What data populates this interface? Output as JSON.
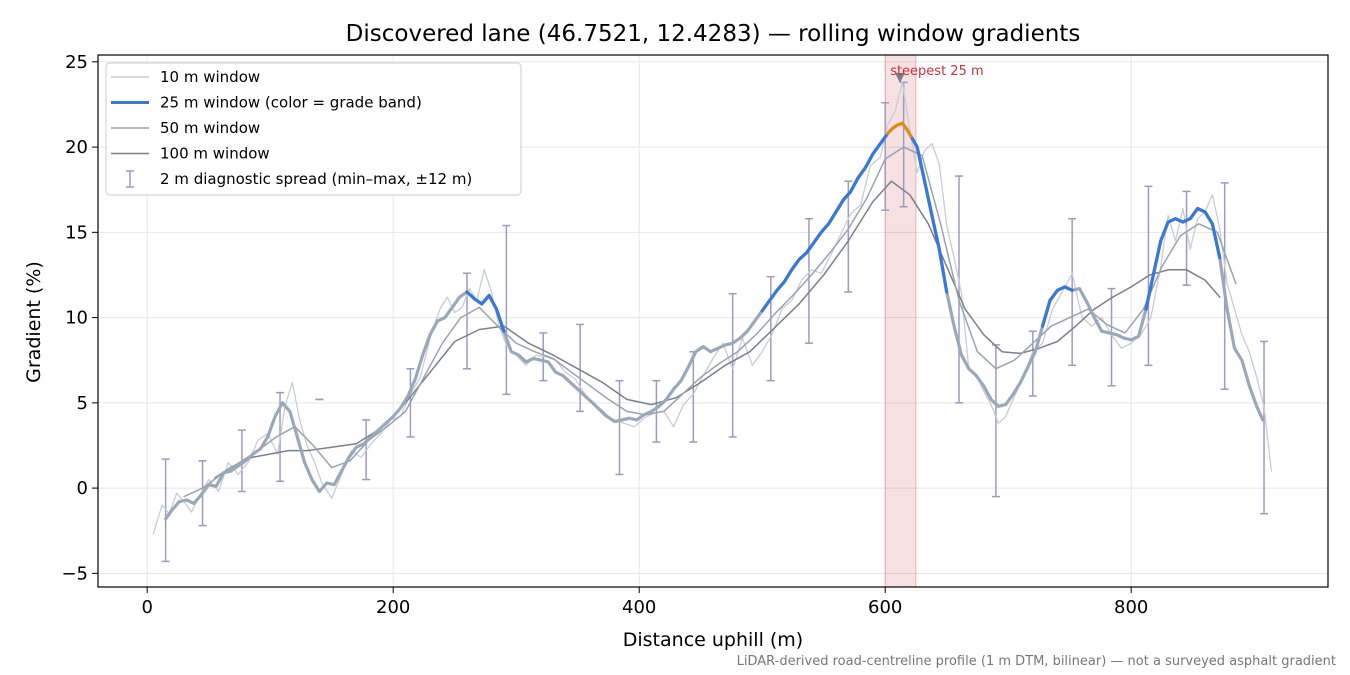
{
  "chart_data": {
    "type": "line",
    "title": "Discovered lane (46.7521, 12.4283) — rolling window gradients",
    "xlabel": "Distance uphill (m)",
    "ylabel": "Gradient (%)",
    "xlim": [
      -40,
      960
    ],
    "ylim": [
      -5.8,
      25.4
    ],
    "xticks": [
      0,
      200,
      400,
      600,
      800
    ],
    "yticks": [
      -5,
      0,
      5,
      10,
      15,
      20,
      25
    ],
    "grid": true,
    "legend_position": "upper-left",
    "footnote": "LiDAR-derived road-centreline profile (1 m DTM, bilinear) — not a surveyed asphalt gradient",
    "highlight": {
      "x_start": 600,
      "x_end": 625,
      "label": "steepest 25 m",
      "marker_x": 612,
      "marker_y": 24.0,
      "color": "#c8323c"
    },
    "legend": [
      {
        "label": "10 m window",
        "kind": "line",
        "color": "#c8ccd6",
        "width": 1.5
      },
      {
        "label": "25 m window (color = grade band)",
        "kind": "line",
        "color": "#3a78d4",
        "width": 3
      },
      {
        "label": "50 m window",
        "kind": "line",
        "color": "#9aa3b0",
        "width": 1.5
      },
      {
        "label": "100 m window",
        "kind": "line",
        "color": "#7a808c",
        "width": 1.5
      },
      {
        "label": "2 m diagnostic spread (min–max, ±12 m)",
        "kind": "errorbar",
        "color": "#9d9bbf"
      }
    ],
    "grade_band_colors": {
      "base": "#9aa8b8",
      "band_10_20": "#3a78d4",
      "band_20_plus": "#e08a1a"
    },
    "series": [
      {
        "name": "10 m window",
        "color": "#c8ccd6",
        "width": 1.3,
        "x": [
          5,
          12,
          18,
          24,
          30,
          36,
          42,
          50,
          58,
          66,
          74,
          82,
          90,
          98,
          106,
          112,
          118,
          124,
          130,
          136,
          142,
          150,
          158,
          166,
          174,
          182,
          190,
          198,
          206,
          214,
          222,
          230,
          238,
          244,
          250,
          256,
          262,
          268,
          274,
          280,
          286,
          292,
          300,
          308,
          316,
          324,
          332,
          340,
          348,
          356,
          364,
          372,
          380,
          388,
          396,
          404,
          412,
          420,
          428,
          436,
          444,
          452,
          460,
          468,
          476,
          484,
          492,
          500,
          508,
          516,
          524,
          532,
          540,
          548,
          556,
          564,
          572,
          580,
          588,
          596,
          602,
          608,
          614,
          620,
          626,
          632,
          638,
          644,
          650,
          656,
          662,
          668,
          674,
          680,
          686,
          692,
          698,
          704,
          712,
          720,
          728,
          736,
          744,
          752,
          760,
          768,
          776,
          784,
          792,
          800,
          808,
          816,
          824,
          830,
          836,
          842,
          848,
          854,
          860,
          866,
          872,
          878,
          884,
          890,
          896,
          902,
          908,
          914
        ],
        "y": [
          -2.7,
          -1.0,
          -1.5,
          -0.3,
          -0.8,
          -1.4,
          -0.5,
          0.5,
          -0.2,
          1.5,
          0.8,
          1.5,
          2.8,
          3.2,
          2.0,
          4.8,
          6.2,
          4.0,
          2.5,
          1.5,
          0.3,
          -0.6,
          0.8,
          2.2,
          1.8,
          2.6,
          3.2,
          4.0,
          4.2,
          5.5,
          6.5,
          8.8,
          10.5,
          11.2,
          10.3,
          10.6,
          11.7,
          11.0,
          12.8,
          11.5,
          9.5,
          8.4,
          7.8,
          7.2,
          7.8,
          7.7,
          7.5,
          6.8,
          6.4,
          5.5,
          4.8,
          4.2,
          4.0,
          3.8,
          3.6,
          4.1,
          4.4,
          4.5,
          3.6,
          4.9,
          5.5,
          6.6,
          7.6,
          8.5,
          7.0,
          8.8,
          7.2,
          8.0,
          9.0,
          10.5,
          11.0,
          12.2,
          12.8,
          12.6,
          13.7,
          14.9,
          16.1,
          16.6,
          18.9,
          19.4,
          21.3,
          22.1,
          23.8,
          21.0,
          18.5,
          19.8,
          20.2,
          19.0,
          15.4,
          13.5,
          11.4,
          7.0,
          6.6,
          5.7,
          4.9,
          3.8,
          4.2,
          5.2,
          6.5,
          8.0,
          8.5,
          10.5,
          11.5,
          12.6,
          10.0,
          9.5,
          10.0,
          9.0,
          8.2,
          8.5,
          9.0,
          10.0,
          13.0,
          16.0,
          14.5,
          16.4,
          14.0,
          15.8,
          16.2,
          17.2,
          15.2,
          12.0,
          10.5,
          9.0,
          8.0,
          6.5,
          4.8,
          1.0
        ]
      },
      {
        "name": "25 m window",
        "color": "#9aa8b8",
        "width": 3.2,
        "highlighted": true,
        "x": [
          15,
          20,
          26,
          32,
          38,
          44,
          50,
          56,
          62,
          68,
          74,
          80,
          86,
          92,
          98,
          104,
          110,
          116,
          122,
          128,
          134,
          140,
          146,
          152,
          158,
          164,
          170,
          176,
          182,
          188,
          194,
          200,
          206,
          212,
          218,
          224,
          230,
          236,
          242,
          248,
          254,
          260,
          266,
          272,
          278,
          284,
          290,
          296,
          302,
          308,
          314,
          320,
          326,
          332,
          338,
          344,
          350,
          356,
          362,
          368,
          374,
          380,
          386,
          392,
          398,
          404,
          410,
          416,
          422,
          428,
          434,
          440,
          446,
          452,
          458,
          464,
          470,
          476,
          482,
          488,
          494,
          500,
          506,
          512,
          518,
          524,
          530,
          536,
          542,
          548,
          554,
          560,
          566,
          572,
          578,
          584,
          590,
          596,
          602,
          606,
          610,
          614,
          618,
          622,
          626,
          632,
          638,
          644,
          650,
          656,
          662,
          668,
          674,
          680,
          686,
          692,
          698,
          704,
          710,
          716,
          722,
          728,
          734,
          740,
          746,
          752,
          758,
          764,
          770,
          776,
          782,
          788,
          794,
          800,
          806,
          812,
          818,
          824,
          830,
          836,
          842,
          848,
          854,
          860,
          866,
          872,
          878,
          884,
          890,
          896,
          902,
          907
        ],
        "y": [
          -1.8,
          -1.3,
          -0.8,
          -0.7,
          -0.9,
          -0.4,
          0.2,
          0.1,
          0.9,
          1.0,
          1.3,
          1.6,
          2.0,
          2.3,
          3.0,
          4.2,
          5.0,
          4.5,
          3.0,
          1.5,
          0.5,
          -0.2,
          0.3,
          0.2,
          1.0,
          1.8,
          2.4,
          2.6,
          3.0,
          3.4,
          3.8,
          4.2,
          4.7,
          5.4,
          6.4,
          7.8,
          9.0,
          9.8,
          10.0,
          10.6,
          11.2,
          11.5,
          11.1,
          10.8,
          11.3,
          10.5,
          9.2,
          8.0,
          7.8,
          7.4,
          7.6,
          7.5,
          7.4,
          6.8,
          6.6,
          6.2,
          5.8,
          5.4,
          5.0,
          4.6,
          4.2,
          3.9,
          4.0,
          4.1,
          4.0,
          4.3,
          4.5,
          4.8,
          5.2,
          5.8,
          6.3,
          7.1,
          8.0,
          8.3,
          8.0,
          8.2,
          8.4,
          8.5,
          8.8,
          9.2,
          9.8,
          10.4,
          11.0,
          11.6,
          12.1,
          12.8,
          13.4,
          13.8,
          14.4,
          15.0,
          15.5,
          16.2,
          16.9,
          17.4,
          18.2,
          18.8,
          19.6,
          20.2,
          20.8,
          21.1,
          21.3,
          21.4,
          21.0,
          20.5,
          20.0,
          18.0,
          16.0,
          14.0,
          11.5,
          9.5,
          7.8,
          7.0,
          6.6,
          6.0,
          5.2,
          4.8,
          4.9,
          5.5,
          6.2,
          7.1,
          8.0,
          9.5,
          11.0,
          11.6,
          11.8,
          11.6,
          11.7,
          10.9,
          10.0,
          9.2,
          9.1,
          9.0,
          8.8,
          8.7,
          8.9,
          10.5,
          12.5,
          14.5,
          15.6,
          15.8,
          15.6,
          15.8,
          16.4,
          16.2,
          15.5,
          13.5,
          10.5,
          8.2,
          7.5,
          6.0,
          4.8,
          4.0
        ],
        "segments": [
          {
            "x_start": 256,
            "x_end": 292,
            "color": "#3a78d4"
          },
          {
            "x_start": 500,
            "x_end": 602,
            "color": "#3a78d4"
          },
          {
            "x_start": 602,
            "x_end": 622,
            "color": "#e08a1a"
          },
          {
            "x_start": 622,
            "x_end": 650,
            "color": "#3a78d4"
          },
          {
            "x_start": 728,
            "x_end": 752,
            "color": "#3a78d4"
          },
          {
            "x_start": 808,
            "x_end": 872,
            "color": "#3a78d4"
          }
        ]
      },
      {
        "name": "50 m window",
        "color": "#9aa3b0",
        "width": 1.5,
        "x": [
          30,
          45,
          60,
          75,
          90,
          105,
          120,
          135,
          150,
          165,
          180,
          195,
          210,
          225,
          240,
          255,
          270,
          285,
          300,
          315,
          330,
          345,
          360,
          375,
          390,
          405,
          420,
          435,
          450,
          465,
          480,
          495,
          510,
          525,
          540,
          555,
          570,
          585,
          600,
          615,
          630,
          645,
          660,
          675,
          690,
          705,
          720,
          735,
          750,
          765,
          780,
          795,
          810,
          825,
          840,
          855,
          870,
          885
        ],
        "y": [
          -0.5,
          0.0,
          0.8,
          1.5,
          2.2,
          3.0,
          3.6,
          2.5,
          1.2,
          1.6,
          2.8,
          3.6,
          4.5,
          6.5,
          8.5,
          10.0,
          10.6,
          9.5,
          8.5,
          8.0,
          7.6,
          6.8,
          6.0,
          5.2,
          4.5,
          4.3,
          4.5,
          5.5,
          6.5,
          7.3,
          8.0,
          9.0,
          10.2,
          11.3,
          12.5,
          13.8,
          15.2,
          17.0,
          19.3,
          20.0,
          19.5,
          15.5,
          11.0,
          8.0,
          7.0,
          7.5,
          8.5,
          9.5,
          10.0,
          10.5,
          9.6,
          9.1,
          10.5,
          13.0,
          14.8,
          15.5,
          15.0,
          12.0
        ]
      },
      {
        "name": "100 m window",
        "color": "#7a808c",
        "width": 1.5,
        "x": [
          55,
          70,
          85,
          100,
          115,
          130,
          150,
          170,
          190,
          210,
          230,
          250,
          270,
          290,
          310,
          330,
          350,
          370,
          390,
          410,
          430,
          450,
          470,
          490,
          510,
          530,
          550,
          570,
          590,
          605,
          620,
          635,
          650,
          665,
          680,
          695,
          710,
          725,
          740,
          755,
          770,
          785,
          800,
          815,
          830,
          845,
          860,
          872
        ],
        "y": [
          0.6,
          1.3,
          1.8,
          2.0,
          2.2,
          2.2,
          2.4,
          2.6,
          3.5,
          5.0,
          6.8,
          8.6,
          9.3,
          9.5,
          8.5,
          7.8,
          7.0,
          6.2,
          5.2,
          4.9,
          5.3,
          6.2,
          7.2,
          8.0,
          9.4,
          10.8,
          12.5,
          14.5,
          16.8,
          18.0,
          17.2,
          15.5,
          13.0,
          10.5,
          9.0,
          8.0,
          7.9,
          8.2,
          8.6,
          9.5,
          10.5,
          11.2,
          11.8,
          12.5,
          12.8,
          12.8,
          12.2,
          11.2
        ]
      }
    ],
    "errorbars": {
      "color": "#9d9bbf",
      "x": [
        15,
        45,
        77,
        108,
        140,
        178,
        214,
        260,
        292,
        322,
        352,
        384,
        414,
        444,
        476,
        507,
        538,
        570,
        600,
        615,
        660,
        690,
        720,
        752,
        784,
        814,
        845,
        876,
        908
      ],
      "lo": [
        -4.3,
        -2.2,
        -0.2,
        0.4,
        5.2,
        0.5,
        3.0,
        7.0,
        5.5,
        6.3,
        4.5,
        0.8,
        2.7,
        2.7,
        3.0,
        6.3,
        8.5,
        11.5,
        16.3,
        16.5,
        5.0,
        -0.5,
        5.4,
        7.2,
        6.0,
        7.2,
        11.9,
        5.8,
        -1.5
      ],
      "hi": [
        1.7,
        1.6,
        3.4,
        5.6,
        5.2,
        4.0,
        7.0,
        12.6,
        15.4,
        9.1,
        9.6,
        6.3,
        6.3,
        8.0,
        11.4,
        12.4,
        15.8,
        18.0,
        22.6,
        23.8,
        18.3,
        8.4,
        9.2,
        15.8,
        11.7,
        17.7,
        17.4,
        17.9,
        8.6
      ]
    }
  }
}
